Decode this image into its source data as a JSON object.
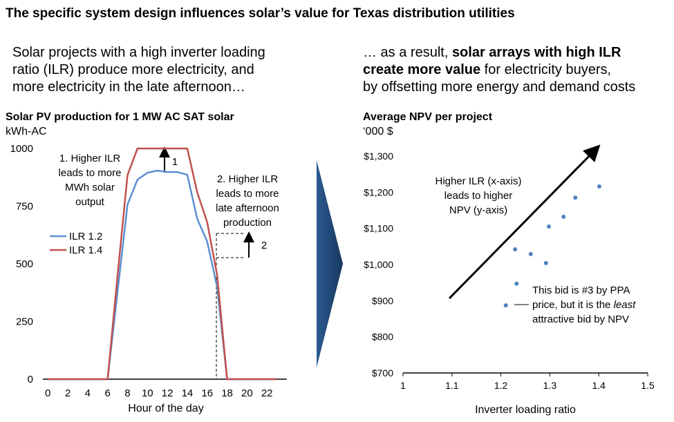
{
  "title": "The specific system design influences solar’s value for Texas distribution utilities",
  "left_caption": [
    [
      "Solar projects with a high inverter loading"
    ],
    [
      "ratio (ILR) produce more electricity, and"
    ],
    [
      "more electricity in the late afternoon…"
    ]
  ],
  "right_caption": [
    [
      "… as a result, ",
      "solar arrays with high ILR"
    ],
    [
      "create more value",
      " for electricity buyers,"
    ],
    [
      "by offsetting more energy and demand costs"
    ]
  ],
  "chart_data": [
    {
      "type": "line",
      "title": "Solar PV production for 1 MW AC SAT solar",
      "y_label": "kWh-AC",
      "x_label": "Hour of the day",
      "x": [
        0,
        1,
        2,
        3,
        4,
        5,
        6,
        7,
        8,
        9,
        10,
        11,
        12,
        13,
        14,
        15,
        16,
        17,
        18,
        19,
        20,
        21,
        22,
        23
      ],
      "series": [
        {
          "name": "ILR 1.2",
          "color": "#5b8fd0",
          "values": [
            0,
            0,
            0,
            0,
            0,
            0,
            0,
            380,
            757,
            865,
            895,
            904,
            898,
            898,
            886,
            695,
            596,
            400,
            0,
            0,
            0,
            0,
            0,
            0
          ]
        },
        {
          "name": "ILR 1.4",
          "color": "#c0504d",
          "values": [
            0,
            0,
            0,
            0,
            0,
            0,
            0,
            450,
            885,
            1000,
            1000,
            1000,
            1000,
            1000,
            1000,
            810,
            680,
            450,
            0,
            0,
            0,
            0,
            0,
            0
          ]
        }
      ],
      "xlim": [
        -0.5,
        24
      ],
      "xticks": [
        0,
        2,
        4,
        6,
        8,
        10,
        12,
        14,
        16,
        18,
        20,
        22
      ],
      "ylim": [
        0,
        1000
      ],
      "yticks": [
        0,
        250,
        500,
        750,
        1000
      ],
      "annotations": [
        {
          "lines": [
            "1. Higher ILR",
            "leads to more",
            "MWh solar",
            "output"
          ]
        },
        {
          "lines": [
            "1"
          ]
        },
        {
          "lines": [
            "2. Higher ILR",
            "leads to more",
            "late afternoon",
            "production"
          ]
        },
        {
          "lines": [
            "2"
          ]
        }
      ]
    },
    {
      "type": "scatter",
      "title": "Average NPV per project",
      "y_label": "‘000 $",
      "x_label": "Inverter loading ratio",
      "x": [
        1.21,
        1.232,
        1.229,
        1.261,
        1.292,
        1.298,
        1.328,
        1.352,
        1.401
      ],
      "values": [
        887,
        947,
        1042,
        1029,
        1004,
        1105,
        1132,
        1185,
        1216
      ],
      "color": "#4f81bd",
      "xlim": [
        1,
        1.5
      ],
      "xticks": [
        1,
        1.1,
        1.2,
        1.3,
        1.4,
        1.5
      ],
      "ylim": [
        700,
        1300
      ],
      "yticks": [
        {
          "value": 700,
          "label": "$700"
        },
        {
          "value": 800,
          "label": "$800"
        },
        {
          "value": 900,
          "label": "$900"
        },
        {
          "value": 1000,
          "label": "$1,000"
        },
        {
          "value": 1100,
          "label": "$1,100"
        },
        {
          "value": 1200,
          "label": "$1,200"
        },
        {
          "value": 1300,
          "label": "$1,300"
        }
      ],
      "annotations": [
        {
          "lines": [
            [
              "Higher ILR (x-axis)"
            ],
            [
              "leads to higher"
            ],
            [
              "NPV (y-axis)"
            ]
          ]
        },
        {
          "lines": [
            [
              "This bid is #3 by PPA"
            ],
            [
              "price, but it is the ",
              "least"
            ],
            [
              "attractive bid by NPV"
            ]
          ]
        }
      ]
    }
  ]
}
